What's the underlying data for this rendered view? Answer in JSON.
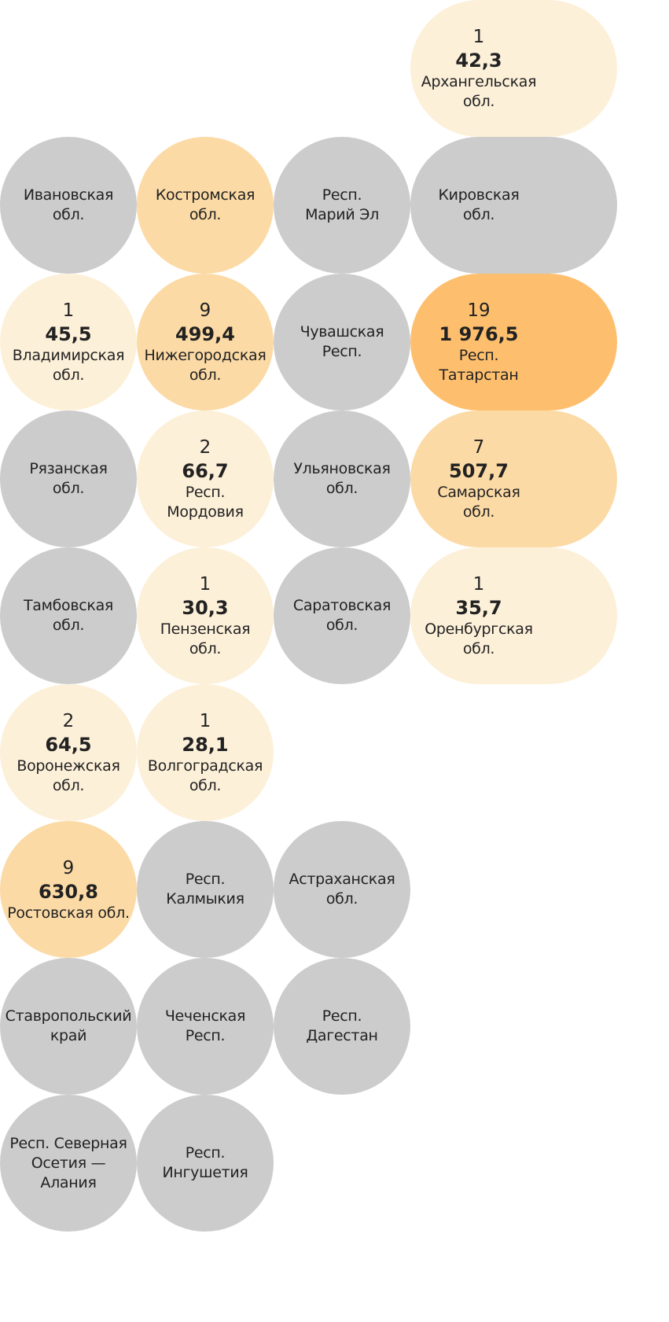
{
  "tiles": [
    {
      "name": "Архангельская\nобл.",
      "count": 1,
      "value": "42,3",
      "color": "#fdf0d9"
    },
    {
      "name": "Ивановская\nобл.",
      "color": "#cccccc"
    },
    {
      "name": "Костромская\nобл.",
      "color": "#fcdaa5"
    },
    {
      "name": "Респ.\nМарий Эл",
      "color": "#cccccc"
    },
    {
      "name": "Кировская\nобл.",
      "color": "#cccccc"
    },
    {
      "name": "Владимирская\nобл.",
      "count": 1,
      "value": "45,5",
      "color": "#fdf0d9"
    },
    {
      "name": "Нижегородская\nобл.",
      "count": 9,
      "value": "499,4",
      "color": "#fcdaa5"
    },
    {
      "name": "Чувашская\nРесп.",
      "color": "#cccccc"
    },
    {
      "name": "Респ.\nТатарстан",
      "count": 19,
      "value": "1 976,5",
      "color": "#fdbf6e"
    },
    {
      "name": "Рязанская\nобл.",
      "color": "#cccccc"
    },
    {
      "name": "Респ.\nМордовия",
      "count": 2,
      "value": "66,7",
      "color": "#fdf0d9"
    },
    {
      "name": "Ульяновская\nобл.",
      "color": "#cccccc"
    },
    {
      "name": "Самарская\nобл.",
      "count": 7,
      "value": "507,7",
      "color": "#fcdaa5"
    },
    {
      "name": "Тамбовская\nобл.",
      "color": "#cccccc"
    },
    {
      "name": "Пензенская\nобл.",
      "count": 1,
      "value": "30,3",
      "color": "#fdf0d9"
    },
    {
      "name": "Саратовская\nобл.",
      "color": "#cccccc"
    },
    {
      "name": "Оренбургская\nобл.",
      "count": 1,
      "value": "35,7",
      "color": "#fdf0d9"
    },
    {
      "name": "Воронежская\nобл.",
      "count": 2,
      "value": "64,5",
      "color": "#fdf0d9"
    },
    {
      "name": "Волгоградская\nобл.",
      "count": 1,
      "value": "28,1",
      "color": "#fdf0d9"
    },
    {
      "name": "Ростовская обл.",
      "count": 9,
      "value": "630,8",
      "color": "#fcdaa5"
    },
    {
      "name": "Респ.\nКалмыкия",
      "color": "#cccccc"
    },
    {
      "name": "Астраханская\nобл.",
      "color": "#cccccc"
    },
    {
      "name": "Ставропольский\nкрай",
      "color": "#cccccc"
    },
    {
      "name": "Чеченская\nРесп.",
      "color": "#cccccc"
    },
    {
      "name": "Респ.\nДагестан",
      "color": "#cccccc"
    },
    {
      "name": "Респ. Северная\nОсетия —\nАлания",
      "color": "#cccccc"
    },
    {
      "name": "Респ.\nИнгушетия",
      "color": "#cccccc"
    }
  ]
}
